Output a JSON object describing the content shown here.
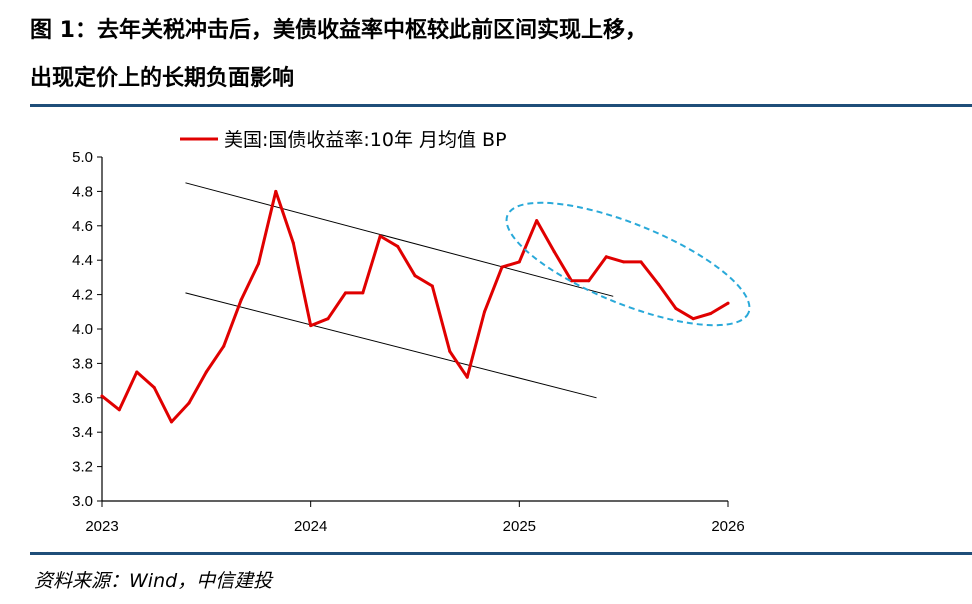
{
  "header": {
    "title_line1": "图 1：去年关税冲击后，美债收益率中枢较此前区间实现上移，",
    "title_line2": "出现定价上的长期负面影响"
  },
  "footer": {
    "source": "资料来源：Wind，中信建投"
  },
  "colors": {
    "series": "#e00000",
    "trend": "#000000",
    "ellipse": "#29a9d9",
    "rule": "#1f4e79"
  },
  "chart_data": {
    "type": "line",
    "title": "",
    "xlabel": "",
    "ylabel": "",
    "ylim": [
      3.0,
      5.0
    ],
    "yticks": [
      "5.0",
      "4.8",
      "4.6",
      "4.4",
      "4.2",
      "4.0",
      "3.8",
      "3.6",
      "3.4",
      "3.2",
      "3.0"
    ],
    "xticks": [
      "2023",
      "2024",
      "2025",
      "2026"
    ],
    "legend": {
      "position": "top",
      "label": "美国:国债收益率:10年 月均值 BP"
    },
    "series": [
      {
        "name": "美国:国债收益率:10年 月均值 BP",
        "x": [
          2023.0,
          2023.083,
          2023.167,
          2023.25,
          2023.333,
          2023.417,
          2023.5,
          2023.583,
          2023.667,
          2023.75,
          2023.833,
          2023.917,
          2024.0,
          2024.083,
          2024.167,
          2024.25,
          2024.333,
          2024.417,
          2024.5,
          2024.583,
          2024.667,
          2024.75,
          2024.833,
          2024.917,
          2025.0,
          2025.083,
          2025.167,
          2025.25,
          2025.333,
          2025.417,
          2025.5,
          2025.583,
          2025.667,
          2025.75,
          2025.833,
          2025.917,
          2026.0
        ],
        "values": [
          3.61,
          3.53,
          3.75,
          3.66,
          3.46,
          3.57,
          3.75,
          3.9,
          4.17,
          4.38,
          4.8,
          4.5,
          4.02,
          4.06,
          4.21,
          4.21,
          4.54,
          4.48,
          4.31,
          4.25,
          3.87,
          3.72,
          4.1,
          4.36,
          4.39,
          4.63,
          4.45,
          4.28,
          4.28,
          4.42,
          4.39,
          4.39,
          4.26,
          4.12,
          4.06,
          4.09,
          4.15
        ]
      }
    ],
    "trendlines": [
      {
        "from": [
          2023.4,
          4.85
        ],
        "to": [
          2025.45,
          4.19
        ]
      },
      {
        "from": [
          2023.4,
          4.21
        ],
        "to": [
          2025.37,
          3.6
        ]
      }
    ],
    "highlight": {
      "shape": "ellipse",
      "around": "2025 range"
    }
  }
}
